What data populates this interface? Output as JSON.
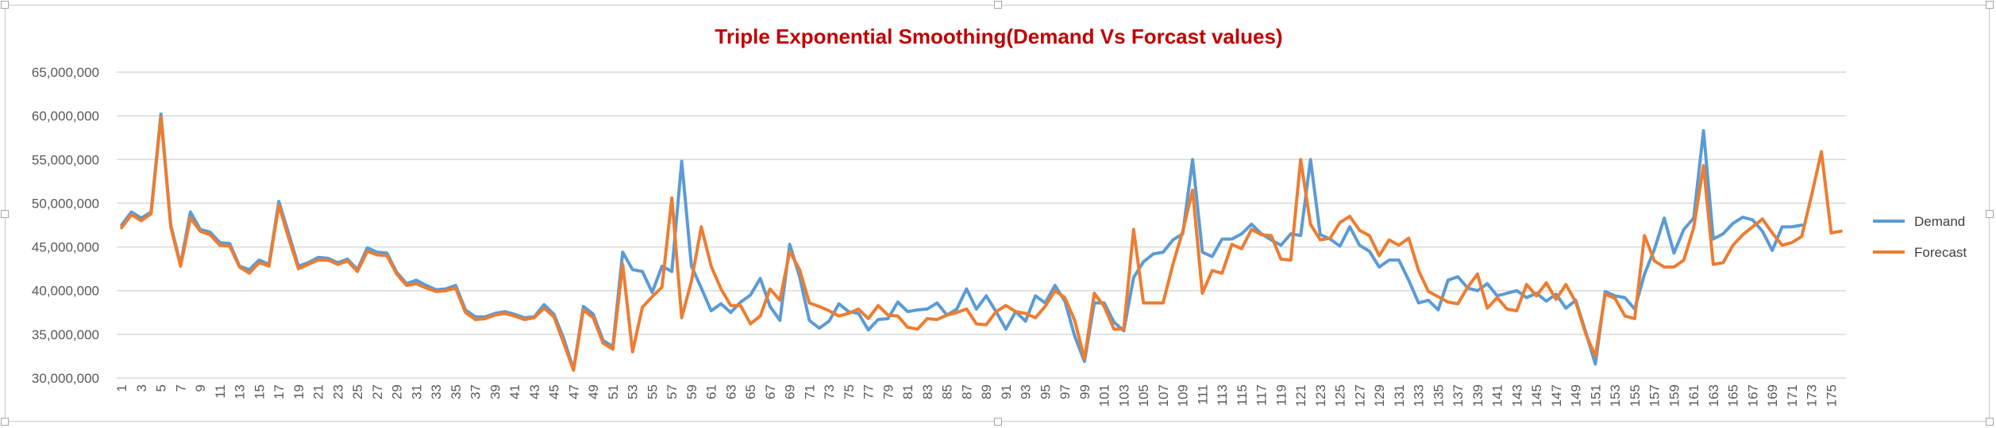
{
  "chart_data": {
    "type": "line",
    "title": "Triple Exponential Smoothing(Demand Vs Forcast values)",
    "xlabel": "",
    "ylabel": "",
    "ylim": [
      30000000,
      65000000
    ],
    "yticks": [
      30000000,
      35000000,
      40000000,
      45000000,
      50000000,
      55000000,
      60000000,
      65000000
    ],
    "ytick_labels": [
      "30,000,000",
      "35,000,000",
      "40,000,000",
      "45,000,000",
      "50,000,000",
      "55,000,000",
      "60,000,000",
      "65,000,000"
    ],
    "x_range": [
      1,
      176
    ],
    "x_tick_step": 2,
    "grid": true,
    "legend_position": "right",
    "series": [
      {
        "name": "Demand",
        "color": "#5b9bd5",
        "values": [
          47500000,
          49000000,
          48300000,
          49000000,
          60200000,
          47500000,
          43000000,
          49000000,
          47000000,
          46700000,
          45500000,
          45400000,
          42800000,
          42400000,
          43500000,
          43000000,
          50200000,
          46500000,
          42800000,
          43200000,
          43800000,
          43700000,
          43200000,
          43600000,
          42400000,
          44900000,
          44400000,
          44300000,
          42100000,
          40800000,
          41200000,
          40600000,
          40100000,
          40200000,
          40600000,
          37800000,
          37000000,
          37000000,
          37400000,
          37600000,
          37300000,
          36900000,
          37000000,
          38400000,
          37300000,
          34500000,
          31000000,
          38200000,
          37300000,
          34300000,
          33600000,
          44400000,
          42400000,
          42200000,
          39800000,
          42800000,
          42200000,
          54800000,
          42800000,
          40300000,
          37700000,
          38500000,
          37500000,
          38700000,
          39500000,
          41400000,
          38200000,
          36600000,
          45300000,
          41600000,
          36600000,
          35700000,
          36500000,
          38500000,
          37600000,
          37400000,
          35500000,
          36700000,
          36800000,
          38700000,
          37600000,
          37800000,
          37900000,
          38600000,
          37200000,
          37900000,
          40200000,
          37900000,
          39400000,
          37600000,
          35600000,
          37600000,
          36500000,
          39400000,
          38600000,
          40600000,
          38800000,
          34800000,
          31900000,
          38600000,
          38600000,
          36400000,
          35400000,
          41500000,
          43300000,
          44200000,
          44400000,
          45800000,
          46500000,
          55000000,
          44400000,
          43900000,
          45900000,
          45900000,
          46500000,
          47600000,
          46500000,
          45800000,
          45200000,
          46500000,
          46300000,
          55000000,
          46400000,
          45900000,
          45100000,
          47300000,
          45200000,
          44500000,
          42700000,
          43500000,
          43500000,
          41200000,
          38600000,
          38900000,
          37800000,
          41200000,
          41600000,
          40300000,
          40000000,
          40800000,
          39400000,
          39700000,
          40000000,
          39200000,
          39700000,
          38800000,
          39600000,
          38000000,
          38900000,
          35300000,
          31600000,
          39900000,
          39400000,
          39200000,
          37900000,
          41900000,
          44700000,
          48300000,
          44300000,
          47000000,
          48300000,
          58300000,
          45900000,
          46500000,
          47700000,
          48400000,
          48100000,
          46800000,
          44600000,
          47300000,
          47300000,
          47500000,
          null,
          null,
          null,
          null
        ]
      },
      {
        "name": "Forecast",
        "color": "#ed7d31",
        "values": [
          47200000,
          48700000,
          48000000,
          48800000,
          59900000,
          47300000,
          42800000,
          48300000,
          46800000,
          46400000,
          45200000,
          45100000,
          42700000,
          42000000,
          43200000,
          42800000,
          49800000,
          46000000,
          42500000,
          43000000,
          43500000,
          43500000,
          43000000,
          43400000,
          42200000,
          44500000,
          44100000,
          44000000,
          41900000,
          40600000,
          40800000,
          40300000,
          39900000,
          40000000,
          40300000,
          37500000,
          36700000,
          36800000,
          37200000,
          37400000,
          37100000,
          36700000,
          36900000,
          38000000,
          37000000,
          34000000,
          30900000,
          37800000,
          36900000,
          34000000,
          33300000,
          43000000,
          33000000,
          38100000,
          39300000,
          40400000,
          50600000,
          36900000,
          41100000,
          47300000,
          42800000,
          40200000,
          38300000,
          38300000,
          36200000,
          37100000,
          40200000,
          38900000,
          44500000,
          42400000,
          38600000,
          38200000,
          37700000,
          37100000,
          37400000,
          37900000,
          36800000,
          38300000,
          37200000,
          37100000,
          35800000,
          35600000,
          36800000,
          36700000,
          37200000,
          37500000,
          37900000,
          36200000,
          36100000,
          37600000,
          38300000,
          37600000,
          37400000,
          36900000,
          38200000,
          40000000,
          39200000,
          36600000,
          32200000,
          39700000,
          38200000,
          35600000,
          35600000,
          47000000,
          38600000,
          38600000,
          38600000,
          43000000,
          46800000,
          51500000,
          39700000,
          42300000,
          42000000,
          45300000,
          44800000,
          47000000,
          46400000,
          46300000,
          43600000,
          43500000,
          55000000,
          47600000,
          45800000,
          46000000,
          47800000,
          48500000,
          46900000,
          46300000,
          44000000,
          45800000,
          45200000,
          46000000,
          42300000,
          39900000,
          39300000,
          38700000,
          38500000,
          40400000,
          41900000,
          38000000,
          39200000,
          37900000,
          37700000,
          40700000,
          39400000,
          40900000,
          39000000,
          40700000,
          38700000,
          35100000,
          32500000,
          39600000,
          39100000,
          37100000,
          36800000,
          46300000,
          43400000,
          42700000,
          42700000,
          43500000,
          47200000,
          54300000,
          43000000,
          43200000,
          45200000,
          46400000,
          47300000,
          48200000,
          46600000,
          45200000,
          45500000,
          46200000,
          50900000,
          55900000,
          46600000,
          46800000
        ]
      }
    ]
  }
}
